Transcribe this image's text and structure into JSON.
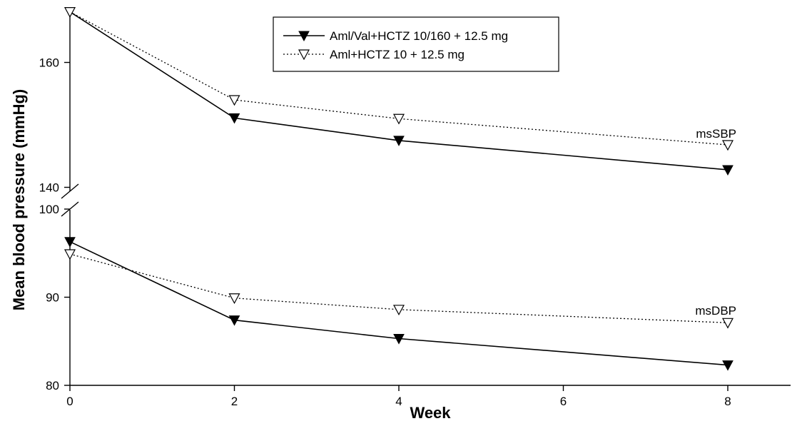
{
  "chart_data": {
    "type": "line",
    "xlabel": "Week",
    "ylabel": "Mean blood pressure (mmHg)",
    "x_ticks": [
      "0",
      "2",
      "4",
      "6",
      "8"
    ],
    "xlim": [
      0,
      8
    ],
    "legend": {
      "placement": "top-center",
      "entries": [
        "Aml/Val+HCTZ 10/160 + 12.5 mg",
        "Aml+HCTZ 10 + 12.5 mg"
      ]
    },
    "panels": [
      {
        "name": "upper",
        "annotation": "msSBP",
        "ylim": [
          138,
          170
        ],
        "y_ticks": [
          "140",
          "160"
        ],
        "series": [
          {
            "name": "Aml/Val+HCTZ 10/160 + 12.5 mg",
            "style": "solid",
            "marker": "filled-down-triangle",
            "x": [
              0,
              2,
              4,
              8
            ],
            "values": [
              168.1,
              151.1,
              147.5,
              142.8
            ]
          },
          {
            "name": "Aml+HCTZ 10 + 12.5 mg",
            "style": "dotted",
            "marker": "open-down-triangle",
            "x": [
              0,
              2,
              4,
              8
            ],
            "values": [
              168.1,
              154.0,
              151.0,
              146.8
            ]
          }
        ]
      },
      {
        "name": "lower",
        "annotation": "msDBP",
        "ylim": [
          80,
          100
        ],
        "y_ticks": [
          "80",
          "90",
          "100"
        ],
        "series": [
          {
            "name": "Aml/Val+HCTZ 10/160 + 12.5 mg",
            "style": "solid",
            "marker": "filled-down-triangle",
            "x": [
              0,
              2,
              4,
              8
            ],
            "values": [
              96.3,
              87.4,
              85.3,
              82.3
            ]
          },
          {
            "name": "Aml+HCTZ 10 + 12.5 mg",
            "style": "dotted",
            "marker": "open-down-triangle",
            "x": [
              0,
              2,
              4,
              8
            ],
            "values": [
              94.9,
              89.9,
              88.6,
              87.1
            ]
          }
        ]
      }
    ],
    "grid": false,
    "colors": {
      "line": "#000000",
      "background": "#ffffff"
    }
  }
}
